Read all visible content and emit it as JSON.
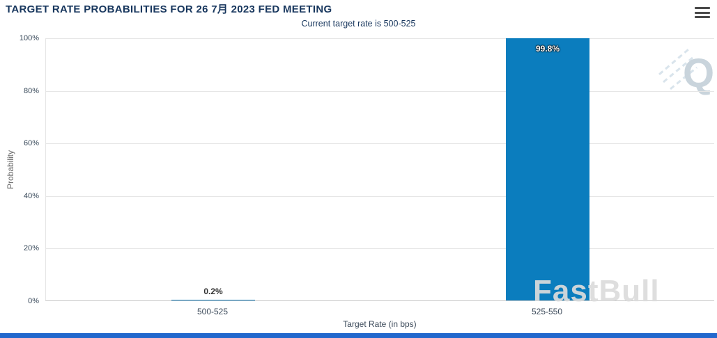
{
  "header": {
    "title": "TARGET RATE PROBABILITIES FOR 26 7月 2023 FED MEETING",
    "subtitle": "Current target rate is 500-525"
  },
  "chart_data": {
    "type": "bar",
    "categories": [
      "500-525",
      "525-550"
    ],
    "values": [
      0.2,
      99.8
    ],
    "value_labels": [
      "0.2%",
      "99.8%"
    ],
    "title": "TARGET RATE PROBABILITIES FOR 26 7月 2023 FED MEETING",
    "subtitle": "Current target rate is 500-525",
    "xlabel": "Target Rate (in bps)",
    "ylabel": "Probability",
    "ylim": [
      0,
      100
    ],
    "yticks": [
      "0%",
      "20%",
      "40%",
      "60%",
      "80%",
      "100%"
    ],
    "grid": true,
    "legend": "none",
    "bar_color": "#0b7dbe"
  },
  "watermarks": {
    "logo_letter": "Q",
    "brand": "FastBull"
  },
  "colors": {
    "title_text": "#17365d",
    "bar": "#0b7dbe",
    "gridline": "#e6e6e6",
    "bottom_strip": "#2268cd"
  }
}
